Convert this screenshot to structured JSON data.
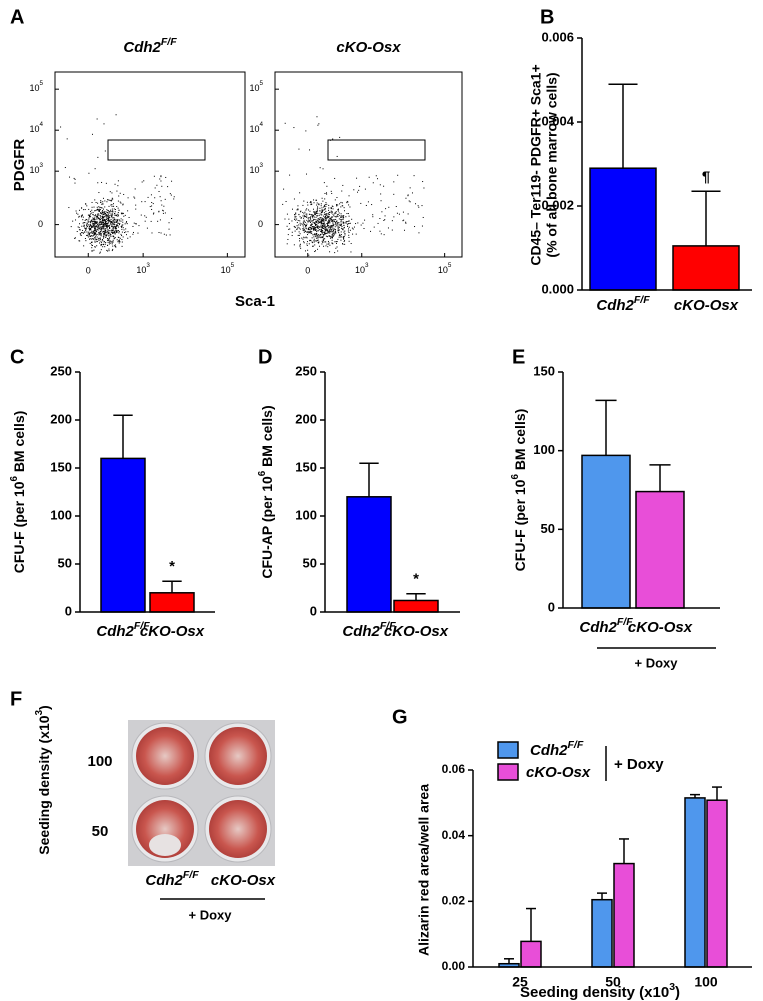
{
  "chart_data": [
    {
      "type": "flow",
      "panel": "A",
      "xlabel": "Sca-1",
      "ylabel": "PDGFR",
      "panels": [
        {
          "title": {
            "text": "Cdh2",
            "sup": "F/F"
          }
        },
        {
          "title": "cKO-Osx"
        }
      ],
      "scale": "biexponential",
      "xlim": [
        -300,
        262144
      ],
      "ylim": [
        -300,
        262144
      ],
      "xticks": [
        0,
        {
          "value": 1000,
          "label": {
            "text": "10",
            "sup": "3"
          }
        },
        {
          "value": 100000,
          "label": {
            "text": "10",
            "sup": "5"
          }
        }
      ],
      "yticks": [
        0,
        {
          "value": 1000,
          "label": {
            "text": "10",
            "sup": "3"
          }
        },
        {
          "value": 10000,
          "label": {
            "text": "10",
            "sup": "4"
          }
        },
        {
          "value": 100000,
          "label": {
            "text": "10",
            "sup": "5"
          }
        }
      ]
    },
    {
      "type": "bar",
      "panel": "B",
      "ylabel": [
        "CD45– Ter119- PDGFR+ Sca1+",
        "(% of all bone marrow cells)"
      ],
      "categories": [
        {
          "text": "Cdh2",
          "sup": "F/F"
        },
        "cKO-Osx"
      ],
      "values": [
        0.0029,
        0.00105
      ],
      "errors": [
        0.002,
        0.0013
      ],
      "annotations": [
        null,
        "¶"
      ],
      "colors": [
        "#0000ff",
        "#ff0000"
      ],
      "ylim": [
        0,
        0.006
      ],
      "yticks": [
        {
          "value": 0,
          "label": "0.000"
        },
        {
          "value": 0.002,
          "label": "0.002"
        },
        {
          "value": 0.004,
          "label": "0.004"
        },
        {
          "value": 0.006,
          "label": "0.006"
        }
      ]
    },
    {
      "type": "bar",
      "panel": "C",
      "ylabel": {
        "text": "CFU-F (per 10",
        "sup": "6",
        "after": " BM cells)"
      },
      "categories": [
        {
          "text": "Cdh2",
          "sup": "F/F"
        },
        "cKO-Osx"
      ],
      "values": [
        160,
        20
      ],
      "errors": [
        45,
        12
      ],
      "annotations": [
        null,
        "*"
      ],
      "colors": [
        "#0000ff",
        "#ff0000"
      ],
      "ylim": [
        0,
        250
      ],
      "yticks": [
        0,
        50,
        100,
        150,
        200,
        250
      ]
    },
    {
      "type": "bar",
      "panel": "D",
      "ylabel": {
        "text": "CFU-AP (per 10",
        "sup": "6",
        "after": " BM cells)"
      },
      "categories": [
        {
          "text": "Cdh2",
          "sup": "F/F"
        },
        "cKO-Osx"
      ],
      "values": [
        120,
        12
      ],
      "errors": [
        35,
        7
      ],
      "annotations": [
        null,
        "*"
      ],
      "colors": [
        "#0000ff",
        "#ff0000"
      ],
      "ylim": [
        0,
        250
      ],
      "yticks": [
        0,
        50,
        100,
        150,
        200,
        250
      ]
    },
    {
      "type": "bar",
      "panel": "E",
      "ylabel": {
        "text": "CFU-F (per 10",
        "sup": "6",
        "after": " BM cells)"
      },
      "categories": [
        {
          "text": "Cdh2",
          "sup": "F/F"
        },
        "cKO-Osx"
      ],
      "values": [
        97,
        74
      ],
      "errors": [
        35,
        17
      ],
      "colors": [
        "#4f97ed",
        "#e84ed8"
      ],
      "ylim": [
        0,
        150
      ],
      "yticks": [
        0,
        50,
        100,
        150
      ],
      "group_label": "+ Doxy"
    },
    {
      "type": "image",
      "panel": "F",
      "ylabel": {
        "text": "Seeding density (x10",
        "sup": "3",
        "after": ")"
      },
      "rows": [
        "100",
        "50"
      ],
      "categories": [
        {
          "text": "Cdh2",
          "sup": "F/F"
        },
        "cKO-Osx"
      ],
      "group_label": "+ Doxy"
    },
    {
      "type": "grouped-bar",
      "panel": "G",
      "ylabel": "Alizarin red area/well area",
      "xlabel": {
        "text": "Seeding density (x10",
        "sup": "3",
        "after": ")"
      },
      "categories": [
        "25",
        "50",
        "100"
      ],
      "series": [
        {
          "name": {
            "text": "Cdh2",
            "sup": "F/F"
          },
          "color": "#4f97ed",
          "values": [
            0.001,
            0.0205,
            0.0515
          ],
          "errors": [
            0.0015,
            0.002,
            0.001
          ]
        },
        {
          "name": "cKO-Osx",
          "color": "#e84ed8",
          "values": [
            0.0078,
            0.0315,
            0.0508
          ],
          "errors": [
            0.01,
            0.0075,
            0.004
          ]
        }
      ],
      "legend_label": "+ Doxy",
      "ylim": [
        0,
        0.06
      ],
      "yticks": [
        {
          "value": 0,
          "label": "0.00"
        },
        {
          "value": 0.02,
          "label": "0.02"
        },
        {
          "value": 0.04,
          "label": "0.04"
        },
        {
          "value": 0.06,
          "label": "0.06"
        }
      ]
    }
  ]
}
